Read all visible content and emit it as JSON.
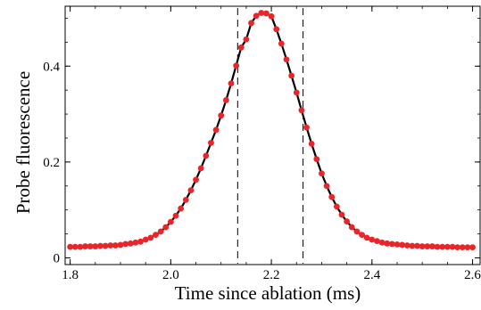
{
  "chart_data": {
    "type": "scatter",
    "xlabel": "Time since ablation (ms)",
    "ylabel": "Probe fluorescence",
    "xlim": [
      1.79,
      2.615
    ],
    "ylim": [
      -0.014,
      0.525
    ],
    "x_ticks": [
      1.8,
      2.0,
      2.2,
      2.4,
      2.6
    ],
    "x_tick_labels": [
      "1.8",
      "2.0",
      "2.2",
      "2.4",
      "2.6"
    ],
    "y_ticks": [
      0,
      0.2,
      0.4
    ],
    "y_tick_labels": [
      "0",
      "0.2",
      "0.4"
    ],
    "grid": false,
    "vertical_markers": [
      2.133,
      2.263
    ],
    "colors": {
      "points": "#e8262a",
      "fit_line": "#000000",
      "markers": "#000000"
    },
    "series": [
      {
        "kind": "points",
        "x": [
          1.8,
          1.81,
          1.82,
          1.83,
          1.84,
          1.85,
          1.86,
          1.87,
          1.88,
          1.89,
          1.9,
          1.91,
          1.92,
          1.93,
          1.94,
          1.95,
          1.96,
          1.97,
          1.98,
          1.99,
          2.0,
          2.01,
          2.02,
          2.03,
          2.04,
          2.05,
          2.06,
          2.07,
          2.08,
          2.09,
          2.1,
          2.11,
          2.12,
          2.13,
          2.14,
          2.15,
          2.16,
          2.17,
          2.18,
          2.19,
          2.2,
          2.21,
          2.22,
          2.23,
          2.24,
          2.25,
          2.26,
          2.27,
          2.28,
          2.29,
          2.3,
          2.31,
          2.32,
          2.33,
          2.34,
          2.35,
          2.36,
          2.37,
          2.38,
          2.39,
          2.4,
          2.41,
          2.42,
          2.43,
          2.44,
          2.45,
          2.46,
          2.47,
          2.48,
          2.49,
          2.5,
          2.51,
          2.52,
          2.53,
          2.54,
          2.55,
          2.56,
          2.57,
          2.58,
          2.59,
          2.6
        ],
        "y": [
          0.023,
          0.023,
          0.023,
          0.024,
          0.024,
          0.024,
          0.025,
          0.025,
          0.026,
          0.026,
          0.027,
          0.029,
          0.03,
          0.032,
          0.034,
          0.038,
          0.042,
          0.048,
          0.055,
          0.064,
          0.075,
          0.088,
          0.103,
          0.121,
          0.141,
          0.163,
          0.187,
          0.213,
          0.24,
          0.267,
          0.297,
          0.329,
          0.364,
          0.401,
          0.439,
          0.456,
          0.49,
          0.505,
          0.511,
          0.51,
          0.504,
          0.477,
          0.447,
          0.414,
          0.38,
          0.345,
          0.308,
          0.272,
          0.238,
          0.206,
          0.176,
          0.15,
          0.127,
          0.107,
          0.09,
          0.076,
          0.064,
          0.055,
          0.048,
          0.042,
          0.038,
          0.035,
          0.032,
          0.03,
          0.029,
          0.028,
          0.027,
          0.026,
          0.025,
          0.025,
          0.024,
          0.024,
          0.024,
          0.023,
          0.023,
          0.023,
          0.023,
          0.022,
          0.022,
          0.022,
          0.022
        ]
      },
      {
        "kind": "fit-line",
        "x": [
          1.8,
          1.85,
          1.9,
          1.95,
          2.0,
          2.05,
          2.1,
          2.15,
          2.2,
          2.25,
          2.3,
          2.35,
          2.4,
          2.45,
          2.5,
          2.55,
          2.6
        ],
        "y": [
          0.023,
          0.024,
          0.027,
          0.038,
          0.075,
          0.163,
          0.297,
          0.456,
          0.504,
          0.345,
          0.176,
          0.076,
          0.038,
          0.028,
          0.024,
          0.023,
          0.022
        ]
      }
    ]
  }
}
